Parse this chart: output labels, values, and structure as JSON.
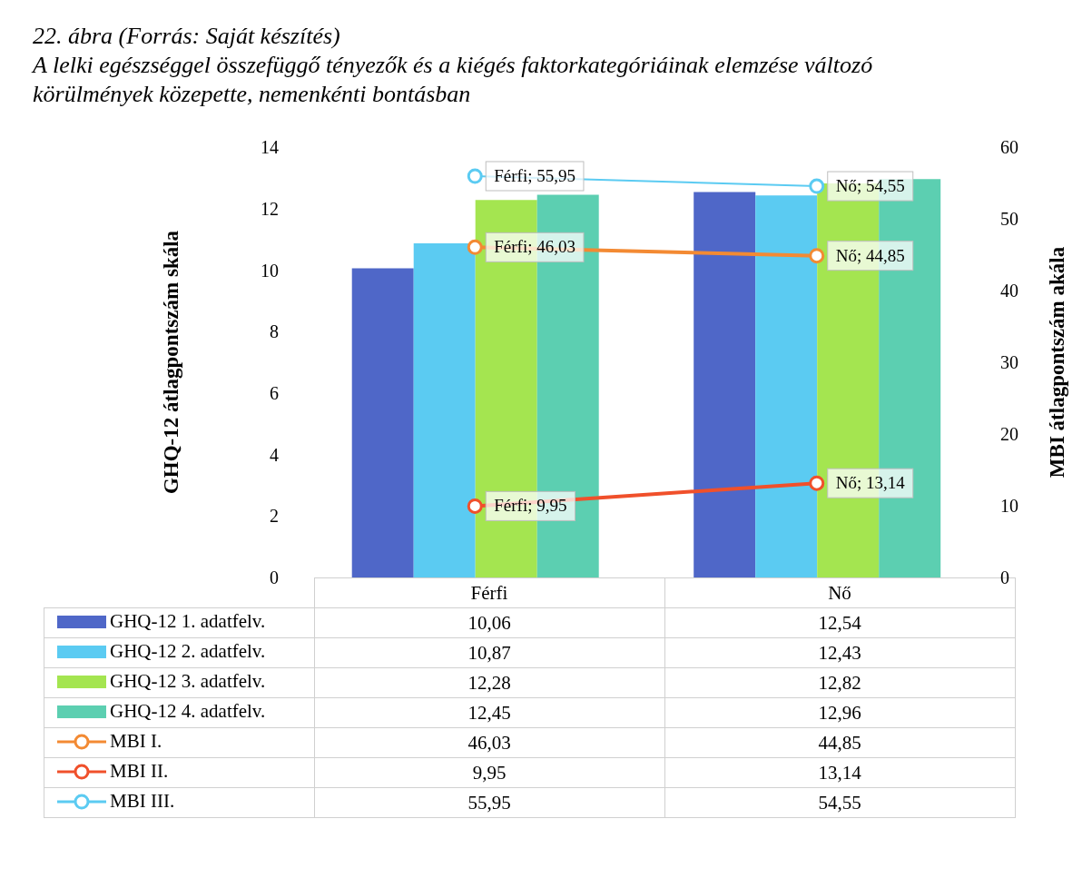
{
  "chart_data": {
    "type": "bar",
    "title": "22. ábra (Forrás: Saját készítés)",
    "subtitle": "A lelki egészséggel összefüggő tényezők és a kiégés faktorkategóriáinak elemzése változó körülmények közepette, nemenkénti bontásban",
    "ylabel": "GHQ-12 átlagpontszám skála",
    "y2label": "MBI átlagpontszám akála",
    "categories": [
      "Férfi",
      "Nő"
    ],
    "ylim": [
      0,
      14
    ],
    "yticks": [
      0,
      2,
      4,
      6,
      8,
      10,
      12,
      14
    ],
    "y2lim": [
      0,
      60
    ],
    "y2ticks": [
      0,
      10,
      20,
      30,
      40,
      50,
      60
    ],
    "grid": false,
    "legend": "bottom",
    "marker": "circle",
    "series": [
      {
        "name": "GHQ-12 1. adatfelv.",
        "color": "#4f67c8",
        "values": [
          10.06,
          12.54
        ],
        "value_labels": [
          "10,06",
          "12,54"
        ]
      },
      {
        "name": "GHQ-12 2. adatfelv.",
        "color": "#5bcbf2",
        "values": [
          10.87,
          12.43
        ],
        "value_labels": [
          "10,87",
          "12,43"
        ]
      },
      {
        "name": "GHQ-12 3. adatfelv.",
        "color": "#a4e550",
        "values": [
          12.28,
          12.82
        ],
        "value_labels": [
          "12,28",
          "12,82"
        ]
      },
      {
        "name": "GHQ-12 4. adatfelv.",
        "color": "#5ccfb1",
        "values": [
          12.45,
          12.96
        ],
        "value_labels": [
          "12,45",
          "12,96"
        ]
      },
      {
        "name": "MBI I.",
        "type": "line",
        "axis": "y2",
        "color": "#f38a33",
        "values": [
          46.03,
          44.85
        ],
        "value_labels": [
          "46,03",
          "44,85"
        ]
      },
      {
        "name": "MBI II.",
        "type": "line",
        "axis": "y2",
        "color": "#f0502b",
        "values": [
          9.95,
          13.14
        ],
        "value_labels": [
          "9,95",
          "13,14"
        ]
      },
      {
        "name": "MBI III.",
        "type": "line",
        "axis": "y2",
        "color": "#5bcbf2",
        "values": [
          55.95,
          54.55
        ],
        "value_labels": [
          "55,95",
          "54,55"
        ]
      }
    ],
    "annotations": [
      "Férfi; 46,03",
      "Nő; 44,85",
      "Férfi; 9,95",
      "Nő; 13,14",
      "Férfi; 55,95",
      "Nő; 54,55"
    ]
  }
}
